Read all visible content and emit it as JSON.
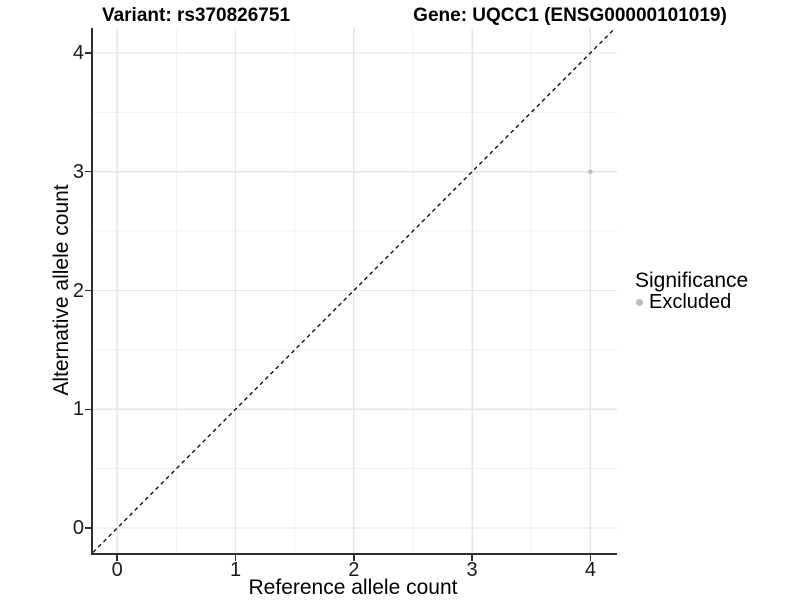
{
  "chart_data": {
    "type": "scatter",
    "title_left": "Variant: rs370826751",
    "title_right": "Gene: UQCC1 (ENSG00000101019)",
    "xlabel": "Reference allele count",
    "ylabel": "Alternative allele count",
    "x_ticks": [
      0,
      1,
      2,
      3,
      4
    ],
    "y_ticks": [
      0,
      1,
      2,
      3,
      4
    ],
    "x_minor_ticks": [
      0.5,
      1.5,
      2.5,
      3.5
    ],
    "y_minor_ticks": [
      0.5,
      1.5,
      2.5,
      3.5
    ],
    "xlim": [
      -0.205,
      4.225
    ],
    "ylim": [
      -0.21,
      4.21
    ],
    "grid": "major+minor",
    "reference_line": {
      "type": "identity",
      "equation": "y = x",
      "style": "dashed",
      "from": -0.205,
      "to": 4.21
    },
    "series": [
      {
        "name": "Excluded",
        "color": "#bcbcbc",
        "points": [
          {
            "x": 4,
            "y": 3
          }
        ]
      }
    ],
    "legend": {
      "title": "Significance",
      "position": "right",
      "items": [
        {
          "label": "Excluded",
          "color": "#bcbcbc",
          "marker": "circle"
        }
      ]
    }
  },
  "colors": {
    "background": "#ffffff",
    "grid_major": "#e6e6e6",
    "grid_minor": "#f2f2f2",
    "axis_line": "#2e2e2e",
    "tick_mark": "#2e2e2e",
    "reference_line": "#000000",
    "point": "#bcbcbc",
    "text": "#000000"
  }
}
